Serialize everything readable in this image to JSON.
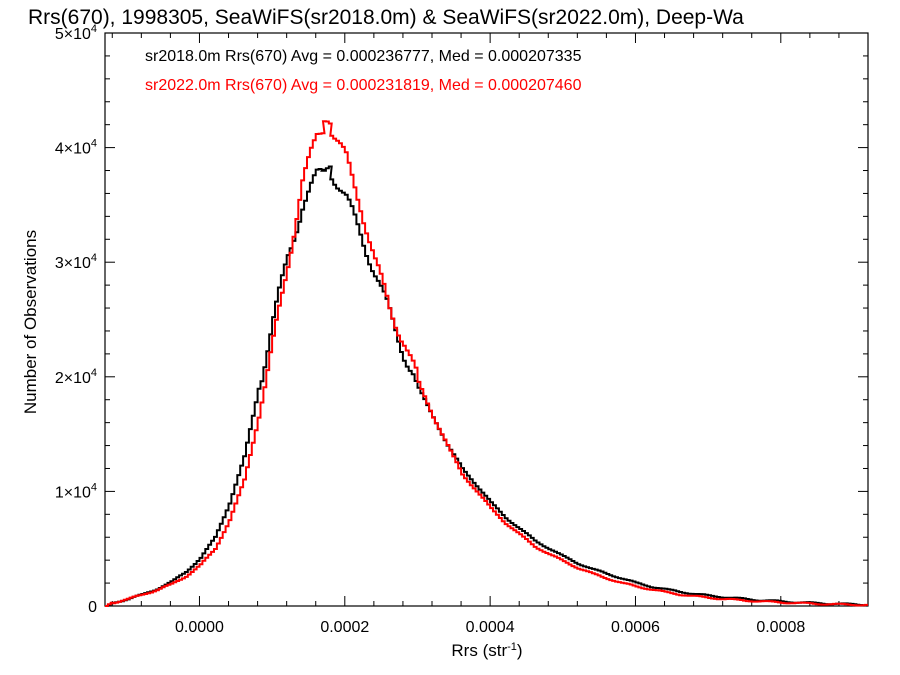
{
  "chart_data": {
    "type": "histogram",
    "title": "Rrs(670), 1998305, SeaWiFS(sr2018.0m) & SeaWiFS(sr2022.0m), Deep-Wa",
    "xlabel_base": "Rrs (str",
    "xlabel_sup": "-1",
    "xlabel_close": ")",
    "ylabel": "Number of Observations",
    "xlim": [
      -0.00013,
      0.00092
    ],
    "ylim": [
      0,
      50000
    ],
    "x_ticks": [
      {
        "value": 0.0,
        "label": "0.0000"
      },
      {
        "value": 0.0002,
        "label": "0.0002"
      },
      {
        "value": 0.0004,
        "label": "0.0004"
      },
      {
        "value": 0.0006,
        "label": "0.0006"
      },
      {
        "value": 0.0008,
        "label": "0.0008"
      }
    ],
    "y_ticks": [
      {
        "value": 0,
        "mant": "0",
        "exp": ""
      },
      {
        "value": 10000,
        "mant": "1×10",
        "exp": "4"
      },
      {
        "value": 20000,
        "mant": "2×10",
        "exp": "4"
      },
      {
        "value": 30000,
        "mant": "3×10",
        "exp": "4"
      },
      {
        "value": 40000,
        "mant": "4×10",
        "exp": "4"
      },
      {
        "value": 50000,
        "mant": "5×10",
        "exp": "4"
      }
    ],
    "grid": false,
    "legend": "top-left",
    "series": [
      {
        "label": "sr2018.0m Rrs(670) Avg = 0.000236777, Med = 0.000207335",
        "color": "#000000",
        "points": [
          [
            -0.00013,
            0
          ],
          [
            -0.00012,
            300
          ],
          [
            -0.0001,
            600
          ],
          [
            -8e-05,
            1000
          ],
          [
            -6e-05,
            1500
          ],
          [
            -4e-05,
            2100
          ],
          [
            -2e-05,
            3000
          ],
          [
            0.0,
            4200
          ],
          [
            2e-05,
            6000
          ],
          [
            4e-05,
            9000
          ],
          [
            6e-05,
            13000
          ],
          [
            8e-05,
            19000
          ],
          [
            0.0001,
            25000
          ],
          [
            0.00012,
            30500
          ],
          [
            0.00014,
            35000
          ],
          [
            0.00016,
            37500
          ],
          [
            0.00017,
            38000
          ],
          [
            0.00018,
            37800
          ],
          [
            0.0002,
            35500
          ],
          [
            0.00022,
            32500
          ],
          [
            0.00024,
            29000
          ],
          [
            0.00026,
            25500
          ],
          [
            0.00028,
            22000
          ],
          [
            0.0003,
            19000
          ],
          [
            0.00032,
            16500
          ],
          [
            0.00034,
            14000
          ],
          [
            0.00036,
            12000
          ],
          [
            0.00038,
            10500
          ],
          [
            0.0004,
            9000
          ],
          [
            0.00042,
            7700
          ],
          [
            0.00044,
            6700
          ],
          [
            0.00046,
            5700
          ],
          [
            0.00048,
            5000
          ],
          [
            0.0005,
            4300
          ],
          [
            0.00052,
            3700
          ],
          [
            0.00054,
            3200
          ],
          [
            0.00056,
            2800
          ],
          [
            0.00058,
            2400
          ],
          [
            0.0006,
            2000
          ],
          [
            0.00062,
            1700
          ],
          [
            0.00064,
            1450
          ],
          [
            0.00066,
            1250
          ],
          [
            0.00068,
            1050
          ],
          [
            0.0007,
            900
          ],
          [
            0.00072,
            780
          ],
          [
            0.00074,
            660
          ],
          [
            0.00076,
            560
          ],
          [
            0.00078,
            470
          ],
          [
            0.0008,
            400
          ],
          [
            0.00082,
            330
          ],
          [
            0.00084,
            270
          ],
          [
            0.00086,
            220
          ],
          [
            0.00088,
            180
          ],
          [
            0.0009,
            150
          ],
          [
            0.00092,
            120
          ]
        ]
      },
      {
        "label": "sr2022.0m Rrs(670) Avg = 0.000231819, Med = 0.000207460",
        "color": "#ff0000",
        "points": [
          [
            -0.00013,
            0
          ],
          [
            -0.00012,
            300
          ],
          [
            -0.0001,
            600
          ],
          [
            -8e-05,
            1000
          ],
          [
            -6e-05,
            1400
          ],
          [
            -4e-05,
            1900
          ],
          [
            -2e-05,
            2600
          ],
          [
            0.0,
            3600
          ],
          [
            2e-05,
            5000
          ],
          [
            4e-05,
            7500
          ],
          [
            6e-05,
            11000
          ],
          [
            8e-05,
            16500
          ],
          [
            0.0001,
            23000
          ],
          [
            0.00012,
            30000
          ],
          [
            0.00014,
            37000
          ],
          [
            0.00016,
            41000
          ],
          [
            0.00017,
            41800
          ],
          [
            0.00018,
            41500
          ],
          [
            0.0002,
            39000
          ],
          [
            0.00022,
            35000
          ],
          [
            0.00024,
            30000
          ],
          [
            0.00026,
            26000
          ],
          [
            0.00028,
            23000
          ],
          [
            0.0003,
            19500
          ],
          [
            0.00032,
            16500
          ],
          [
            0.00034,
            14000
          ],
          [
            0.00036,
            11500
          ],
          [
            0.00038,
            10000
          ],
          [
            0.0004,
            8500
          ],
          [
            0.00042,
            7200
          ],
          [
            0.00044,
            6200
          ],
          [
            0.00046,
            5200
          ],
          [
            0.00048,
            4500
          ],
          [
            0.0005,
            3900
          ],
          [
            0.00052,
            3300
          ],
          [
            0.00054,
            2800
          ],
          [
            0.00056,
            2400
          ],
          [
            0.00058,
            2000
          ],
          [
            0.0006,
            1700
          ],
          [
            0.00062,
            1450
          ],
          [
            0.00064,
            1200
          ],
          [
            0.00066,
            1000
          ],
          [
            0.00068,
            850
          ],
          [
            0.0007,
            720
          ],
          [
            0.00072,
            610
          ],
          [
            0.00074,
            520
          ],
          [
            0.00076,
            440
          ],
          [
            0.00078,
            370
          ],
          [
            0.0008,
            310
          ],
          [
            0.00082,
            260
          ],
          [
            0.00084,
            210
          ],
          [
            0.00086,
            170
          ],
          [
            0.00088,
            140
          ],
          [
            0.0009,
            110
          ],
          [
            0.00092,
            90
          ]
        ]
      }
    ]
  }
}
